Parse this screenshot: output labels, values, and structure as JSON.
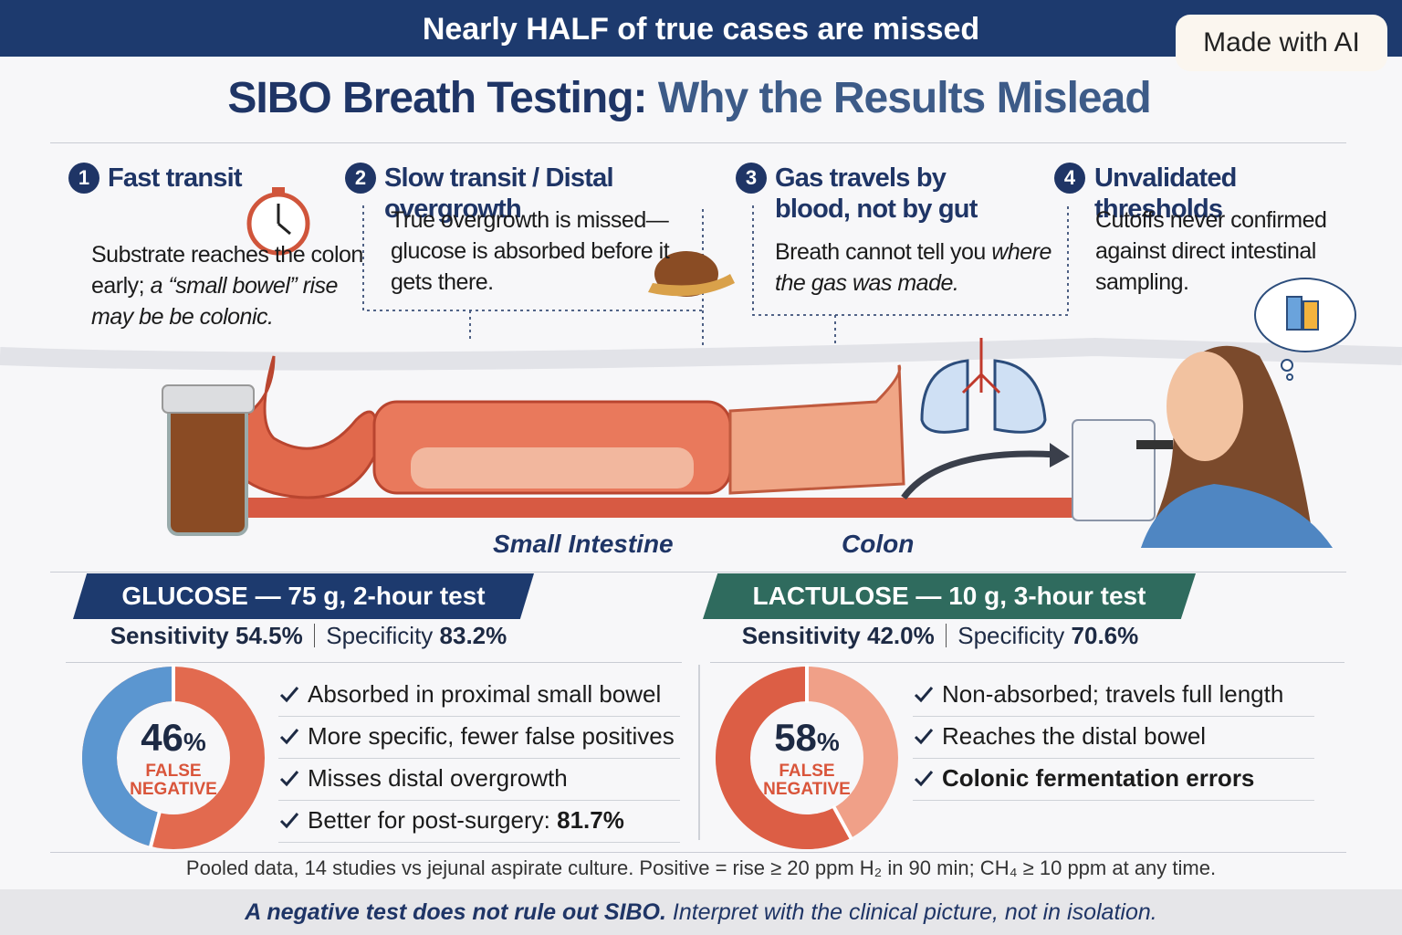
{
  "banner": "Nearly HALF of true cases are missed",
  "badge": "Made with AI",
  "title": {
    "lead": "SIBO Breath Testing:",
    "rest": "Why the Results Mislead"
  },
  "steps": [
    {
      "number": "1",
      "title": "Fast transit",
      "text": "Substrate reaches the colon early;",
      "emphasis": "a “small bowel” rise may be be colonic."
    },
    {
      "number": "2",
      "title": "Slow transit / Distal overgrowth",
      "text": "True overgrowth is missed—glucose is absorbed before it gets there."
    },
    {
      "number": "3",
      "title": "Gas travels by blood, not by gut",
      "text": "Breath cannot tell you",
      "emphasis": "where the gas was made."
    },
    {
      "number": "4",
      "title": "Unvalidated thresholds",
      "text": "Cutoffs never confirmed against direct intestinal sampling."
    }
  ],
  "illustration_labels": [
    "Small Intestine",
    "Colon"
  ],
  "tests": [
    {
      "name": "GLUCOSE — 75 g, 2-hour test",
      "sensitivity_label": "Sensitivity",
      "sensitivity": "54.5%",
      "specificity_label": "Specificity",
      "specificity": "83.2%",
      "donut": {
        "value": 46,
        "unit": "%",
        "caption": [
          "FALSE",
          "NEGATIVE"
        ],
        "color": "#5b96d0",
        "rest_color": "#e26a4f"
      },
      "bullets": [
        {
          "text": "Absorbed in proximal small bowel"
        },
        {
          "text": "More specific, fewer false positives"
        },
        {
          "text": "Misses distal overgrowth"
        },
        {
          "text": "Better for post-surgery:",
          "strong": "81.7%"
        }
      ]
    },
    {
      "name": "LACTULOSE — 10 g, 3-hour test",
      "sensitivity_label": "Sensitivity",
      "sensitivity": "42.0%",
      "specificity_label": "Specificity",
      "specificity": "70.6%",
      "donut": {
        "value": 58,
        "unit": "%",
        "caption": [
          "FALSE",
          "NEGATIVE"
        ],
        "color": "#dc5e45",
        "rest_color": "#f0a088"
      },
      "bullets": [
        {
          "text": "Non-absorbed; travels full length"
        },
        {
          "text": "Reaches the distal bowel"
        },
        {
          "strong": "Colonic fermentation errors"
        }
      ]
    }
  ],
  "footnote": "Pooled data, 14 studies vs jejunal aspirate culture. Positive = rise ≥ 20 ppm H₂ in 90 min; CH₄ ≥ 10 ppm at any time.",
  "bottom": {
    "strong": "A negative test does not rule out SIBO.",
    "text": "Interpret with the clinical picture, not in isolation."
  }
}
